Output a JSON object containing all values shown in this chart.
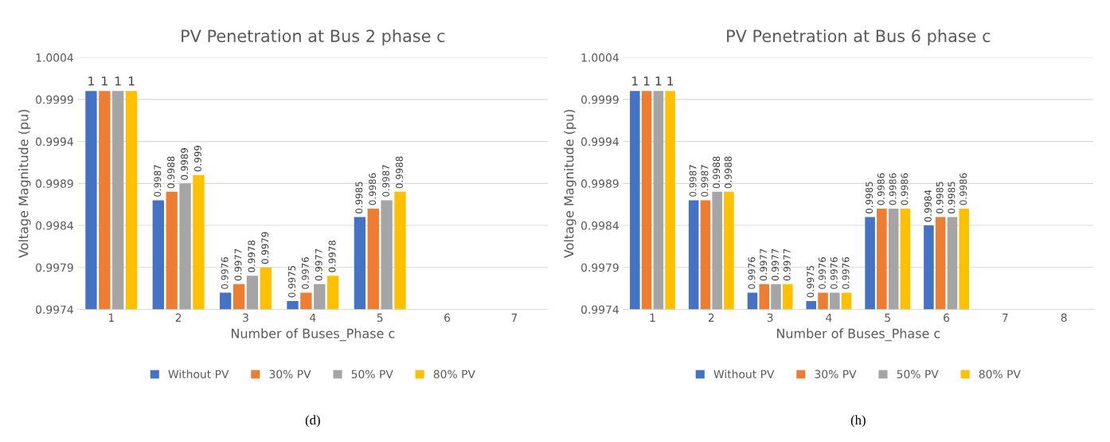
{
  "chart_data": [
    {
      "type": "bar",
      "title": "PV Penetration at Bus 2 phase c",
      "xlabel": "Number of Buses_Phase c",
      "ylabel": "Voltage Magnitude (pu)",
      "categories": [
        "1",
        "2",
        "3",
        "4",
        "5",
        "6",
        "7"
      ],
      "series": [
        {
          "name": "Without PV",
          "color": "#4472c4",
          "values": [
            1,
            0.9987,
            0.9976,
            0.9975,
            0.9985,
            null,
            null
          ],
          "value_labels": [
            "1",
            "0.9987",
            "0.9976",
            "0.9975",
            "0.9985",
            null,
            null
          ]
        },
        {
          "name": "30% PV",
          "color": "#ed7d31",
          "values": [
            1,
            0.9988,
            0.9977,
            0.9976,
            0.9986,
            null,
            null
          ],
          "value_labels": [
            "1",
            "0.9988",
            "0.9977",
            "0.9976",
            "0.9986",
            null,
            null
          ]
        },
        {
          "name": "50% PV",
          "color": "#a5a5a5",
          "values": [
            1,
            0.9989,
            0.9978,
            0.9977,
            0.9987,
            null,
            null
          ],
          "value_labels": [
            "1",
            "0.9989",
            "0.9978",
            "0.9977",
            "0.9987",
            null,
            null
          ]
        },
        {
          "name": "80% PV",
          "color": "#ffc000",
          "values": [
            1,
            0.999,
            0.9979,
            0.9978,
            0.9988,
            null,
            null
          ],
          "value_labels": [
            "1",
            "0.999",
            "0.9979",
            "0.9978",
            "0.9988",
            null,
            null
          ]
        }
      ],
      "ylim": [
        0.9974,
        1.0004
      ],
      "yticks": [
        0.9974,
        0.9979,
        0.9984,
        0.9989,
        0.9994,
        0.9999,
        1.0004
      ],
      "grid": "y",
      "legend": "bottom",
      "annotations": [
        "(d)"
      ]
    },
    {
      "type": "bar",
      "title": "PV Penetration at Bus 6 phase c",
      "xlabel": "Number of Buses_Phase c",
      "ylabel": "Voltage Magnitude (pu)",
      "categories": [
        "1",
        "2",
        "3",
        "4",
        "5",
        "6",
        "7",
        "8"
      ],
      "series": [
        {
          "name": "Without PV",
          "color": "#4472c4",
          "values": [
            1,
            0.9987,
            0.9976,
            0.9975,
            0.9985,
            0.9984,
            0.9974,
            0.9974
          ],
          "value_labels": [
            "1",
            "0.9987",
            "0.9976",
            "0.9975",
            "0.9985",
            "0.9984",
            null,
            null
          ]
        },
        {
          "name": "30% PV",
          "color": "#ed7d31",
          "values": [
            1,
            0.9987,
            0.9977,
            0.9976,
            0.9986,
            0.9985,
            0.9974,
            0.9974
          ],
          "value_labels": [
            "1",
            "0.9987",
            "0.9977",
            "0.9976",
            "0.9986",
            "0.9985",
            null,
            null
          ]
        },
        {
          "name": "50% PV",
          "color": "#a5a5a5",
          "values": [
            1,
            0.9988,
            0.9977,
            0.9976,
            0.9986,
            0.9985,
            0.9974,
            0.9974
          ],
          "value_labels": [
            "1",
            "0.9988",
            "0.9977",
            "0.9976",
            "0.9986",
            "0.9985",
            null,
            null
          ]
        },
        {
          "name": "80% PV",
          "color": "#ffc000",
          "values": [
            1,
            0.9988,
            0.9977,
            0.9976,
            0.9986,
            0.9986,
            0.9974,
            0.9974
          ],
          "value_labels": [
            "1",
            "0.9988",
            "0.9977",
            "0.9976",
            "0.9986",
            "0.9986",
            null,
            null
          ]
        }
      ],
      "ylim": [
        0.9974,
        1.0004
      ],
      "yticks": [
        0.9974,
        0.9979,
        0.9984,
        0.9989,
        0.9994,
        0.9999,
        1.0004
      ],
      "grid": "y",
      "legend": "bottom",
      "annotations": [
        "(h)"
      ]
    }
  ]
}
